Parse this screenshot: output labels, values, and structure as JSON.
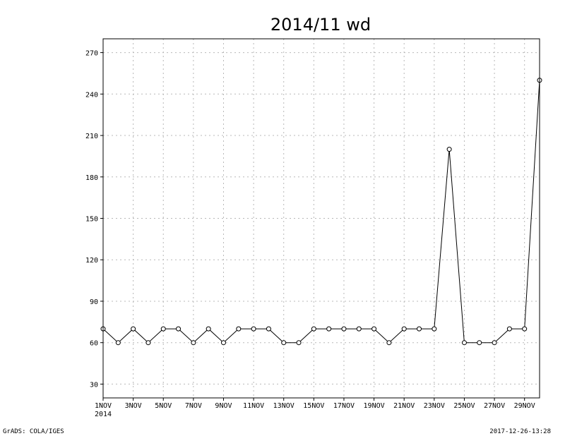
{
  "footer": {
    "left": "GrADS: COLA/IGES",
    "right": "2017-12-26-13:28"
  },
  "chart_data": {
    "type": "line",
    "title": "2014/11 wd",
    "xlabel": "",
    "ylabel": "",
    "x": [
      "1NOV",
      "2NOV",
      "3NOV",
      "4NOV",
      "5NOV",
      "6NOV",
      "7NOV",
      "8NOV",
      "9NOV",
      "10NOV",
      "11NOV",
      "12NOV",
      "13NOV",
      "14NOV",
      "15NOV",
      "16NOV",
      "17NOV",
      "18NOV",
      "19NOV",
      "20NOV",
      "21NOV",
      "22NOV",
      "23NOV",
      "24NOV",
      "25NOV",
      "26NOV",
      "27NOV",
      "28NOV",
      "29NOV",
      "30NOV"
    ],
    "x_tick_labels": [
      "1NOV",
      "3NOV",
      "5NOV",
      "7NOV",
      "9NOV",
      "11NOV",
      "13NOV",
      "15NOV",
      "17NOV",
      "19NOV",
      "21NOV",
      "23NOV",
      "25NOV",
      "27NOV",
      "29NOV"
    ],
    "x_year_label": "2014",
    "series": [
      {
        "values": [
          70,
          60,
          70,
          60,
          70,
          70,
          60,
          70,
          60,
          70,
          70,
          70,
          60,
          60,
          70,
          70,
          70,
          70,
          70,
          60,
          70,
          70,
          70,
          200,
          60,
          60,
          60,
          70,
          70,
          250
        ]
      }
    ],
    "yticks": [
      30,
      60,
      90,
      120,
      150,
      180,
      210,
      240,
      270
    ],
    "ylim": [
      20,
      280
    ],
    "grid": true,
    "legend": "none"
  }
}
